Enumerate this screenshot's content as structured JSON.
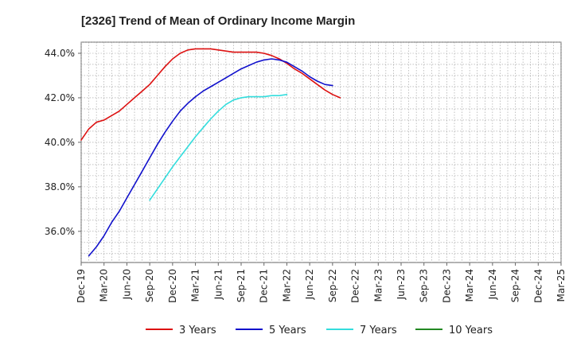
{
  "chart_data": {
    "type": "line",
    "title": "[2326]  Trend of Mean of Ordinary Income Margin",
    "xlabel": "",
    "ylabel": "",
    "x_tick_labels": [
      "Dec-19",
      "Mar-20",
      "Jun-20",
      "Sep-20",
      "Dec-20",
      "Mar-21",
      "Jun-21",
      "Sep-21",
      "Dec-21",
      "Mar-22",
      "Jun-22",
      "Sep-22",
      "Dec-22",
      "Mar-23",
      "Jun-23",
      "Sep-23",
      "Dec-23",
      "Mar-24",
      "Jun-24",
      "Sep-24",
      "Dec-24",
      "Mar-25"
    ],
    "y_ticks": [
      {
        "value": 36,
        "label": "36.0%"
      },
      {
        "value": 38,
        "label": "38.0%"
      },
      {
        "value": 40,
        "label": "40.0%"
      },
      {
        "value": 42,
        "label": "42.0%"
      },
      {
        "value": 44,
        "label": "44.0%"
      }
    ],
    "ylim": [
      34.6,
      44.5
    ],
    "grid": true,
    "legend_position": "bottom",
    "series": [
      {
        "name": "3 Years",
        "color": "#dd1111",
        "start_index": 0,
        "values": [
          40.1,
          40.6,
          40.9,
          41.0,
          41.2,
          41.4,
          41.7,
          42.0,
          42.3,
          42.6,
          43.0,
          43.4,
          43.75,
          44.0,
          44.15,
          44.2,
          44.2,
          44.2,
          44.15,
          44.1,
          44.05,
          44.05,
          44.05,
          44.05,
          44.0,
          43.9,
          43.75,
          43.55,
          43.3,
          43.1,
          42.85,
          42.6,
          42.35,
          42.15,
          42.0
        ]
      },
      {
        "name": "5 Years",
        "color": "#1111cc",
        "start_index": 1,
        "values": [
          34.9,
          35.3,
          35.8,
          36.4,
          36.9,
          37.5,
          38.1,
          38.7,
          39.3,
          39.9,
          40.45,
          40.95,
          41.4,
          41.75,
          42.05,
          42.3,
          42.5,
          42.7,
          42.9,
          43.1,
          43.3,
          43.45,
          43.6,
          43.7,
          43.75,
          43.7,
          43.6,
          43.4,
          43.2,
          42.95,
          42.75,
          42.6,
          42.55
        ]
      },
      {
        "name": "7 Years",
        "color": "#33dddd",
        "start_index": 9,
        "values": [
          37.4,
          37.9,
          38.4,
          38.9,
          39.35,
          39.8,
          40.25,
          40.65,
          41.05,
          41.4,
          41.7,
          41.9,
          42.0,
          42.05,
          42.05,
          42.05,
          42.1,
          42.1,
          42.15
        ]
      },
      {
        "name": "10 Years",
        "color": "#228822",
        "start_index": 0,
        "values": []
      }
    ]
  }
}
